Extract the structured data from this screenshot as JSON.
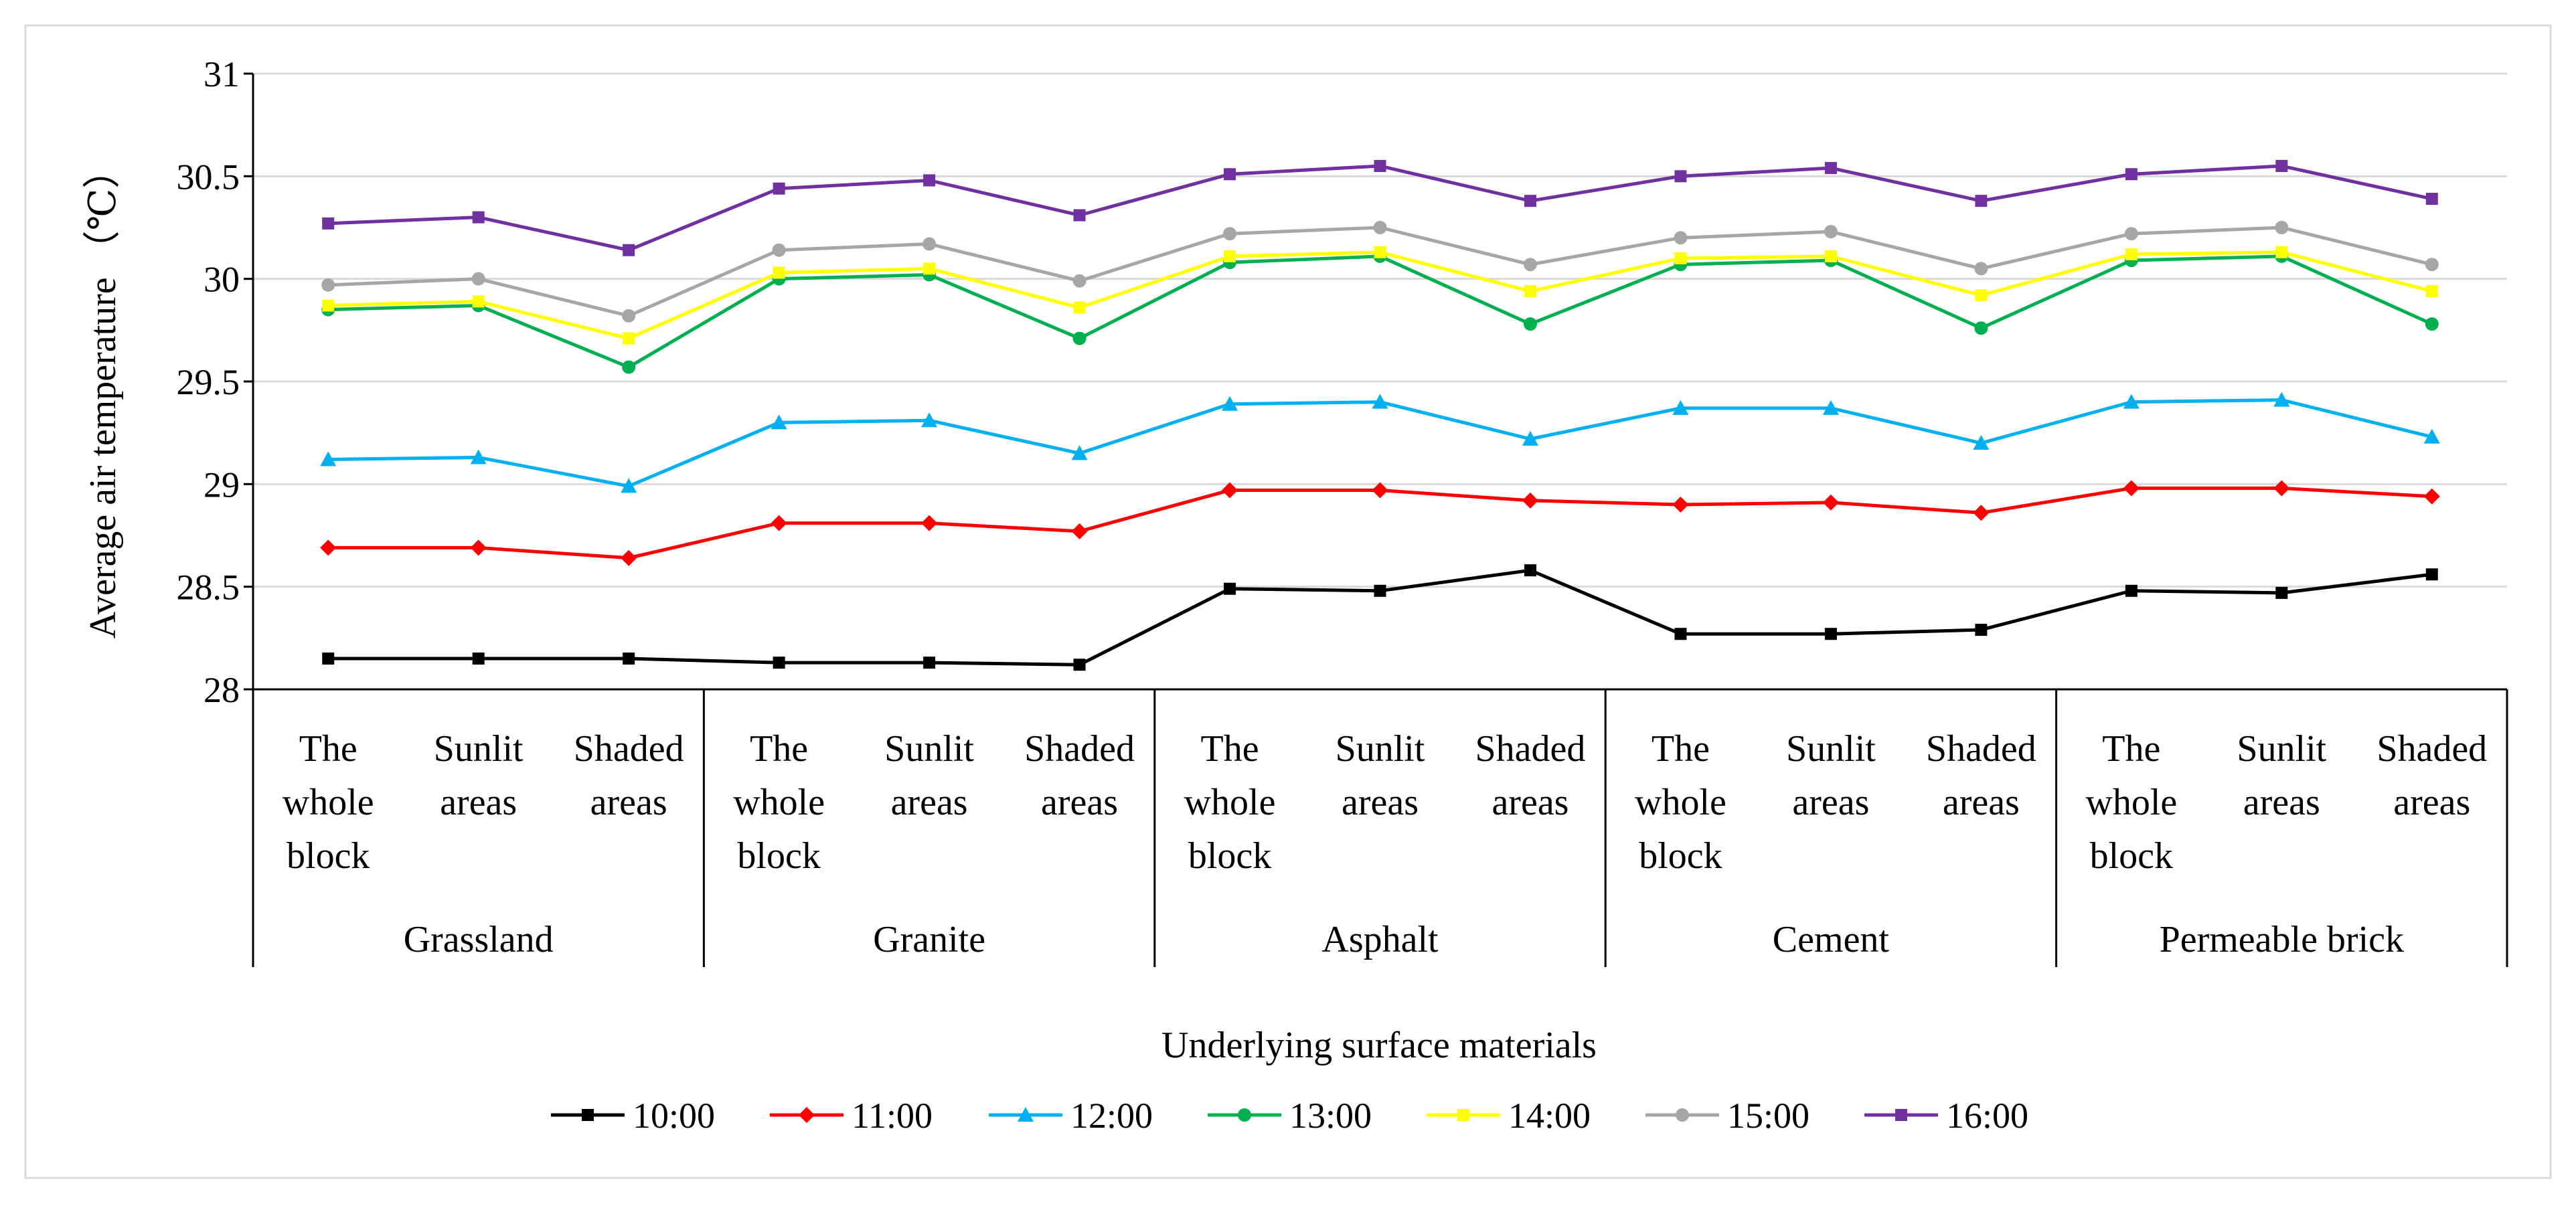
{
  "chart_data": {
    "type": "line",
    "title": "",
    "xlabel": "Underlying surface materials",
    "ylabel": "Average air temperature （℃）",
    "ylim": [
      28,
      31
    ],
    "yticks": [
      "28",
      "28.5",
      "29",
      "29.5",
      "30",
      "30.5",
      "31"
    ],
    "grid": true,
    "legend_position": "bottom",
    "groups": [
      "Grassland",
      "Granite",
      "Asphalt",
      "Cement",
      "Permeable brick"
    ],
    "subcategories": [
      [
        "The",
        "whole",
        "block"
      ],
      [
        "Sunlit",
        "areas"
      ],
      [
        "Shaded",
        "areas"
      ]
    ],
    "series": [
      {
        "name": "10:00",
        "color": "#000000",
        "marker": "square",
        "values": [
          28.15,
          28.15,
          28.15,
          28.13,
          28.13,
          28.12,
          28.49,
          28.48,
          28.58,
          28.27,
          28.27,
          28.29,
          28.48,
          28.47,
          28.56
        ]
      },
      {
        "name": "11:00",
        "color": "#ff0000",
        "marker": "diamond",
        "values": [
          28.69,
          28.69,
          28.64,
          28.81,
          28.81,
          28.77,
          28.97,
          28.97,
          28.92,
          28.9,
          28.91,
          28.86,
          28.98,
          28.98,
          28.94
        ]
      },
      {
        "name": "12:00",
        "color": "#00b0f0",
        "marker": "triangle",
        "values": [
          29.12,
          29.13,
          28.99,
          29.3,
          29.31,
          29.15,
          29.39,
          29.4,
          29.22,
          29.37,
          29.37,
          29.2,
          29.4,
          29.41,
          29.23
        ]
      },
      {
        "name": "13:00",
        "color": "#00b050",
        "marker": "circle",
        "values": [
          29.85,
          29.87,
          29.57,
          30.0,
          30.02,
          29.71,
          30.08,
          30.11,
          29.78,
          30.07,
          30.09,
          29.76,
          30.09,
          30.11,
          29.78
        ]
      },
      {
        "name": "14:00",
        "color": "#ffff00",
        "marker": "square",
        "values": [
          29.87,
          29.89,
          29.71,
          30.03,
          30.05,
          29.86,
          30.11,
          30.13,
          29.94,
          30.1,
          30.11,
          29.92,
          30.12,
          30.13,
          29.94
        ]
      },
      {
        "name": "15:00",
        "color": "#a6a6a6",
        "marker": "circle",
        "values": [
          29.97,
          30.0,
          29.82,
          30.14,
          30.17,
          29.99,
          30.22,
          30.25,
          30.07,
          30.2,
          30.23,
          30.05,
          30.22,
          30.25,
          30.07
        ]
      },
      {
        "name": "16:00",
        "color": "#7030a0",
        "marker": "square",
        "values": [
          30.27,
          30.3,
          30.14,
          30.44,
          30.48,
          30.31,
          30.51,
          30.55,
          30.38,
          30.5,
          30.54,
          30.38,
          30.51,
          30.55,
          30.39
        ]
      }
    ]
  }
}
